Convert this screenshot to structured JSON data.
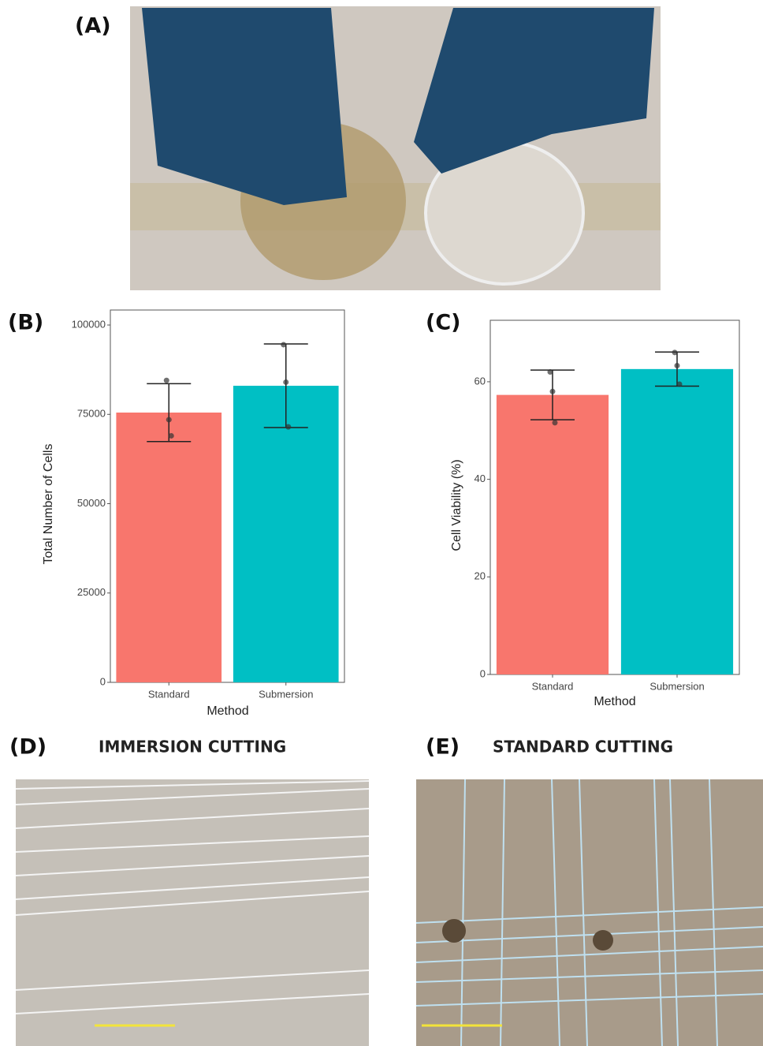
{
  "figure": {
    "labels": [
      "(A)",
      "(B)",
      "(C)",
      "(D)",
      "(E)"
    ],
    "captions": [
      "IMMERSION CUTTING",
      "STANDARD CUTTING"
    ]
  },
  "chart_data": [
    {
      "type": "bar",
      "x_label": "Method",
      "y_label": "Total Number of Cells",
      "categories": [
        "Standard",
        "Submersion"
      ],
      "values": [
        75500,
        83000
      ],
      "errors": [
        8100,
        11700
      ],
      "points": [
        [
          84500,
          73500,
          69000
        ],
        [
          94500,
          84000,
          71500
        ]
      ],
      "colors": [
        "#f8766d",
        "#00bfc4"
      ],
      "ylim": [
        0,
        104200
      ],
      "yticks": [
        0,
        25000,
        50000,
        75000,
        100000
      ]
    },
    {
      "type": "bar",
      "x_label": "Method",
      "y_label": "Cell Viability (%)",
      "categories": [
        "Standard",
        "Submersion"
      ],
      "values": [
        57.3,
        62.6
      ],
      "errors": [
        5.1,
        3.5
      ],
      "points": [
        [
          62,
          58,
          51.6
        ],
        [
          66,
          63.3,
          59.5
        ]
      ],
      "colors": [
        "#f8766d",
        "#00bfc4"
      ],
      "ylim": [
        0,
        72.6
      ],
      "yticks": [
        0,
        20,
        40,
        60
      ]
    }
  ]
}
